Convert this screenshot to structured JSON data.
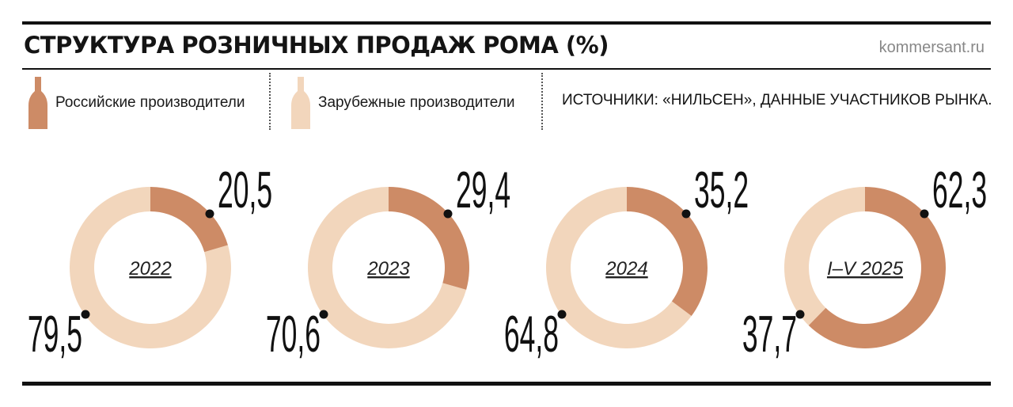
{
  "header": {
    "title": "СТРУКТУРА РОЗНИЧНЫХ ПРОДАЖ РОМА (%)",
    "site": "kommersant.ru"
  },
  "legend": {
    "russian": "Российские производители",
    "foreign": "Зарубежные производители",
    "source": "ИСТОЧНИКИ: «НИЛЬСЕН», ДАННЫЕ УЧАСТНИКОВ РЫНКА."
  },
  "colors": {
    "russian": "#CD8B66",
    "foreign": "#F2D6BC",
    "ink": "#111111"
  },
  "chart_data": [
    {
      "type": "pie",
      "title": "2022",
      "series": [
        {
          "name": "Российские производители",
          "value": 20.5,
          "label": "20,5"
        },
        {
          "name": "Зарубежные производители",
          "value": 79.5,
          "label": "79,5"
        }
      ]
    },
    {
      "type": "pie",
      "title": "2023",
      "series": [
        {
          "name": "Российские производители",
          "value": 29.4,
          "label": "29,4"
        },
        {
          "name": "Зарубежные производители",
          "value": 70.6,
          "label": "70,6"
        }
      ]
    },
    {
      "type": "pie",
      "title": "2024",
      "series": [
        {
          "name": "Российские производители",
          "value": 35.2,
          "label": "35,2"
        },
        {
          "name": "Зарубежные производители",
          "value": 64.8,
          "label": "64,8"
        }
      ]
    },
    {
      "type": "pie",
      "title": "I–V 2025",
      "series": [
        {
          "name": "Российские производители",
          "value": 62.3,
          "label": "62,3"
        },
        {
          "name": "Зарубежные производители",
          "value": 37.7,
          "label": "37,7"
        }
      ]
    }
  ]
}
